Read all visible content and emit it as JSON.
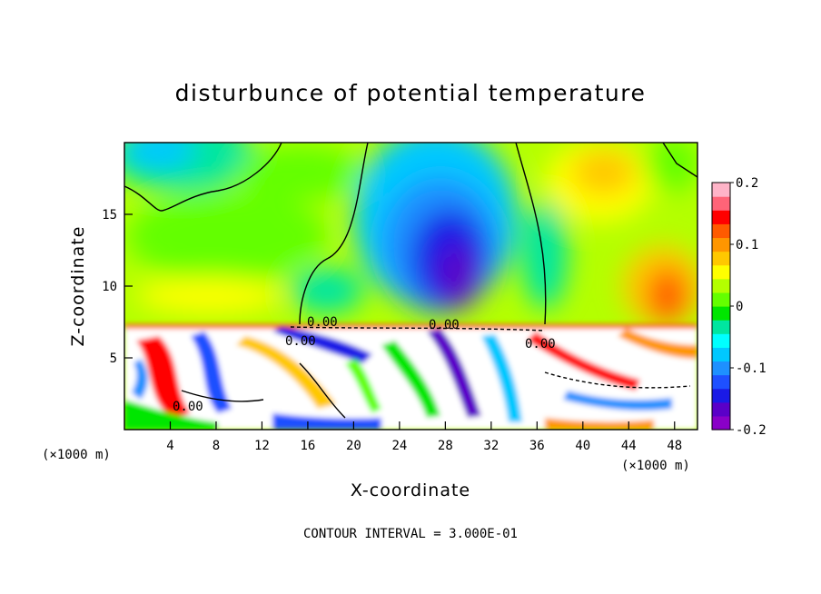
{
  "chart_data": {
    "type": "heatmap",
    "title": "disturbunce of potential temperature",
    "xlabel": "X-coordinate",
    "ylabel": "Z-coordinate",
    "x_unit_label": "(×1000 m)",
    "y_unit_label": "(×1000 m)",
    "xlim": [
      0,
      50
    ],
    "ylim": [
      0,
      20
    ],
    "x_ticks": [
      "4",
      "8",
      "12",
      "16",
      "20",
      "24",
      "28",
      "32",
      "36",
      "40",
      "44",
      "48"
    ],
    "y_ticks": [
      "5",
      "10",
      "15"
    ],
    "colorbar": {
      "min": -0.2,
      "max": 0.2,
      "tick_labels": [
        "0.2",
        "0.1",
        "0",
        "-0.1",
        "-0.2"
      ],
      "tick_values": [
        0.2,
        0.1,
        0,
        -0.1,
        -0.2
      ],
      "colors": [
        "#8a00c8",
        "#5a00c8",
        "#1a1ae6",
        "#1e50ff",
        "#1e90ff",
        "#00c8ff",
        "#00ffff",
        "#00e6a0",
        "#00e600",
        "#64ff00",
        "#b4ff00",
        "#ffff00",
        "#ffc800",
        "#ff9600",
        "#ff5a00",
        "#ff0000",
        "#ff6478",
        "#ffb4c8"
      ]
    },
    "contour_labels": [
      "0.00",
      "0.00",
      "0.00",
      "0.00",
      "0.00"
    ],
    "contour_interval_text": "CONTOUR INTERVAL = 3.000E-01"
  }
}
